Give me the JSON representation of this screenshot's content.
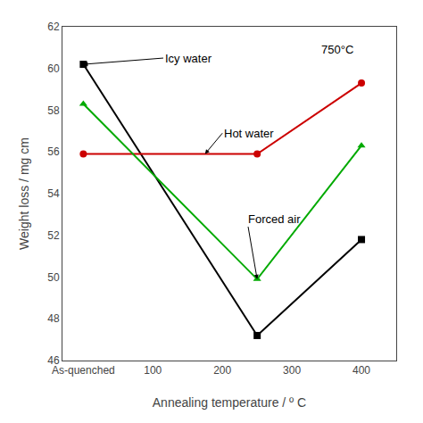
{
  "chart_data": {
    "type": "line",
    "x": [
      0,
      250,
      400
    ],
    "series": [
      {
        "values": [
          60.2,
          47.2,
          51.8
        ],
        "color": "#000000",
        "marker": "square"
      },
      {
        "values": [
          55.9,
          55.9,
          59.3
        ],
        "color": "#cc0000",
        "marker": "circle"
      },
      {
        "values": [
          58.3,
          49.9,
          56.3
        ],
        "color": "#00aa00",
        "marker": "triangle-up"
      }
    ],
    "x_label": "Annealing temperature / º C",
    "y_label": "Weight loss / mg cm",
    "xlim": [
      -30,
      450
    ],
    "xticks": [
      {
        "value": 0,
        "label": "As-quenched"
      },
      100,
      200,
      300,
      400
    ],
    "ylim": [
      46,
      62
    ],
    "yticks": [
      46,
      48,
      50,
      52,
      54,
      56,
      58,
      60,
      62
    ],
    "grid": false,
    "annotations": [
      {
        "text": "Icy water",
        "x": 0,
        "y": 60.2,
        "text_x": 115,
        "text_y": 60.5,
        "arrow": true
      },
      {
        "text": "Hot water",
        "x": 175,
        "y": 55.9,
        "text_x": 200,
        "text_y": 56.9,
        "arrow": true
      },
      {
        "text": "Forced air",
        "x": 250,
        "y": 49.9,
        "text_x": 235,
        "text_y": 52.8,
        "arrow": true
      },
      {
        "text": "750°C",
        "x": 340,
        "y": 61.3,
        "arrow": false
      }
    ]
  }
}
